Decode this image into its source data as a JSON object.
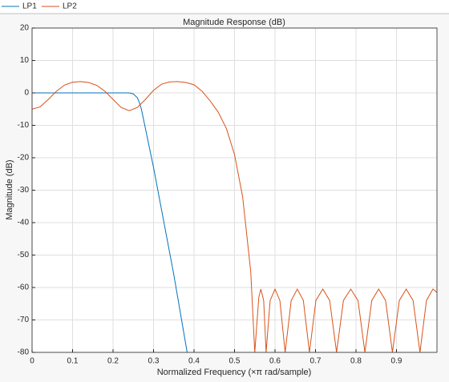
{
  "chart_data": {
    "type": "line",
    "title": "Magnitude Response (dB)",
    "x_label": "Normalized Frequency (×π rad/sample)",
    "y_label": "Magnitude (dB)",
    "xlim": [
      0,
      1
    ],
    "xticks": [
      0,
      0.1,
      0.2,
      0.3,
      0.4,
      0.5,
      0.6,
      0.7,
      0.8,
      0.9
    ],
    "ylim": [
      -80,
      20
    ],
    "yticks": [
      -80,
      -70,
      -60,
      -50,
      -40,
      -30,
      -20,
      -10,
      0,
      10,
      20
    ],
    "grid": true,
    "legend": "top",
    "series": [
      {
        "name": "LP1",
        "color": "#0072bd",
        "x": [
          0,
          0.1,
          0.2,
          0.24,
          0.25,
          0.26,
          0.265,
          0.27,
          0.3,
          0.35,
          0.383
        ],
        "values": [
          0,
          0,
          0,
          0,
          -0.3,
          -1.5,
          -3,
          -5,
          -23,
          -56,
          -80
        ]
      },
      {
        "name": "LP2",
        "color": "#d95319",
        "x": [
          0,
          0.02,
          0.04,
          0.06,
          0.08,
          0.1,
          0.12,
          0.14,
          0.16,
          0.18,
          0.2,
          0.22,
          0.24,
          0.26,
          0.28,
          0.3,
          0.32,
          0.34,
          0.36,
          0.38,
          0.4,
          0.42,
          0.44,
          0.46,
          0.48,
          0.5,
          0.52,
          0.54,
          0.55,
          0.56,
          0.565,
          0.572,
          0.578,
          0.588,
          0.6,
          0.612,
          0.625,
          0.64,
          0.655,
          0.67,
          0.685,
          0.701,
          0.718,
          0.735,
          0.752,
          0.769,
          0.787,
          0.805,
          0.822,
          0.839,
          0.856,
          0.873,
          0.89,
          0.907,
          0.924,
          0.941,
          0.958,
          0.974,
          0.99,
          1
        ],
        "values": [
          -5,
          -4.3,
          -2,
          0.5,
          2.4,
          3.3,
          3.5,
          3.2,
          2.3,
          0.5,
          -2,
          -4.5,
          -5.5,
          -4.5,
          -2,
          0.8,
          2.7,
          3.4,
          3.5,
          3.2,
          2.5,
          0.5,
          -2.5,
          -6,
          -11,
          -19,
          -32,
          -55,
          -80,
          -63,
          -60.5,
          -64,
          -80,
          -64,
          -60.5,
          -64,
          -80,
          -64,
          -60.5,
          -64,
          -80,
          -64,
          -60.5,
          -64,
          -80,
          -64,
          -60.5,
          -64,
          -80,
          -64,
          -60.5,
          -64,
          -80,
          -64,
          -60.5,
          -64,
          -80,
          -64,
          -60.5,
          -61.5
        ]
      }
    ]
  }
}
